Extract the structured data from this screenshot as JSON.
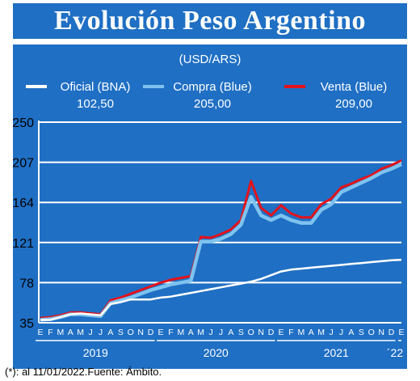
{
  "header": {
    "title": "Evolución Peso Argentino"
  },
  "chart_data": {
    "type": "line",
    "title": "Evolución Peso Argentino",
    "subtitle": "(USD/ARS)",
    "ylim": [
      35,
      250
    ],
    "yticks": [
      35,
      78,
      121,
      164,
      207,
      250
    ],
    "xlabel": "",
    "ylabel": "",
    "grid": "horizontal",
    "legend_position": "top",
    "colors": {
      "background": "#1f6fc4",
      "oficial": "#ffffff",
      "compra": "#7ec3ef",
      "venta": "#e3131b",
      "text": "#ffffff"
    },
    "month_letters": [
      "E",
      "F",
      "M",
      "A",
      "M",
      "J",
      "J",
      "A",
      "S",
      "O",
      "N",
      "D",
      "E",
      "F",
      "M",
      "A",
      "M",
      "J",
      "J",
      "A",
      "S",
      "O",
      "N",
      "D",
      "E",
      "F",
      "M",
      "A",
      "M",
      "J",
      "J",
      "A",
      "S",
      "O",
      "N",
      "D",
      "E"
    ],
    "year_labels": [
      "2019",
      "2020",
      "2021",
      "´22"
    ],
    "x": [
      "2019-01",
      "2019-02",
      "2019-03",
      "2019-04",
      "2019-05",
      "2019-06",
      "2019-07",
      "2019-08",
      "2019-09",
      "2019-10",
      "2019-11",
      "2019-12",
      "2020-01",
      "2020-02",
      "2020-03",
      "2020-04",
      "2020-05",
      "2020-06",
      "2020-07",
      "2020-08",
      "2020-09",
      "2020-10",
      "2020-11",
      "2020-12",
      "2021-01",
      "2021-02",
      "2021-03",
      "2021-04",
      "2021-05",
      "2021-06",
      "2021-07",
      "2021-08",
      "2021-09",
      "2021-10",
      "2021-11",
      "2021-12",
      "2022-01"
    ],
    "series": [
      {
        "name": "Oficial (BNA)",
        "last_value": "102,50",
        "values": [
          38,
          38,
          41,
          44,
          45,
          44,
          43,
          55,
          57,
          60,
          60,
          60,
          62,
          63,
          65,
          67,
          69,
          71,
          73,
          75,
          77,
          79,
          82,
          86,
          90,
          92,
          93,
          94,
          95,
          96,
          97,
          98,
          99,
          100,
          101,
          102,
          102.5
        ]
      },
      {
        "name": "Compra (Blue)",
        "last_value": "205,00",
        "values": [
          38,
          39,
          41,
          44,
          44,
          43,
          42,
          56,
          59,
          62,
          66,
          70,
          73,
          76,
          78,
          80,
          122,
          122,
          125,
          130,
          140,
          170,
          150,
          145,
          150,
          145,
          142,
          142,
          156,
          162,
          175,
          180,
          185,
          190,
          196,
          200,
          205
        ]
      },
      {
        "name": "Venta (Blue)",
        "last_value": "209,00",
        "values": [
          40,
          41,
          43,
          46,
          46,
          45,
          44,
          59,
          62,
          66,
          70,
          74,
          78,
          81,
          83,
          85,
          127,
          126,
          130,
          135,
          145,
          187,
          158,
          150,
          161,
          152,
          148,
          148,
          162,
          168,
          180,
          184,
          189,
          193,
          200,
          204,
          209
        ]
      }
    ]
  },
  "footnote": "(*): al 11/01/2022.Fuente: Ámbito."
}
